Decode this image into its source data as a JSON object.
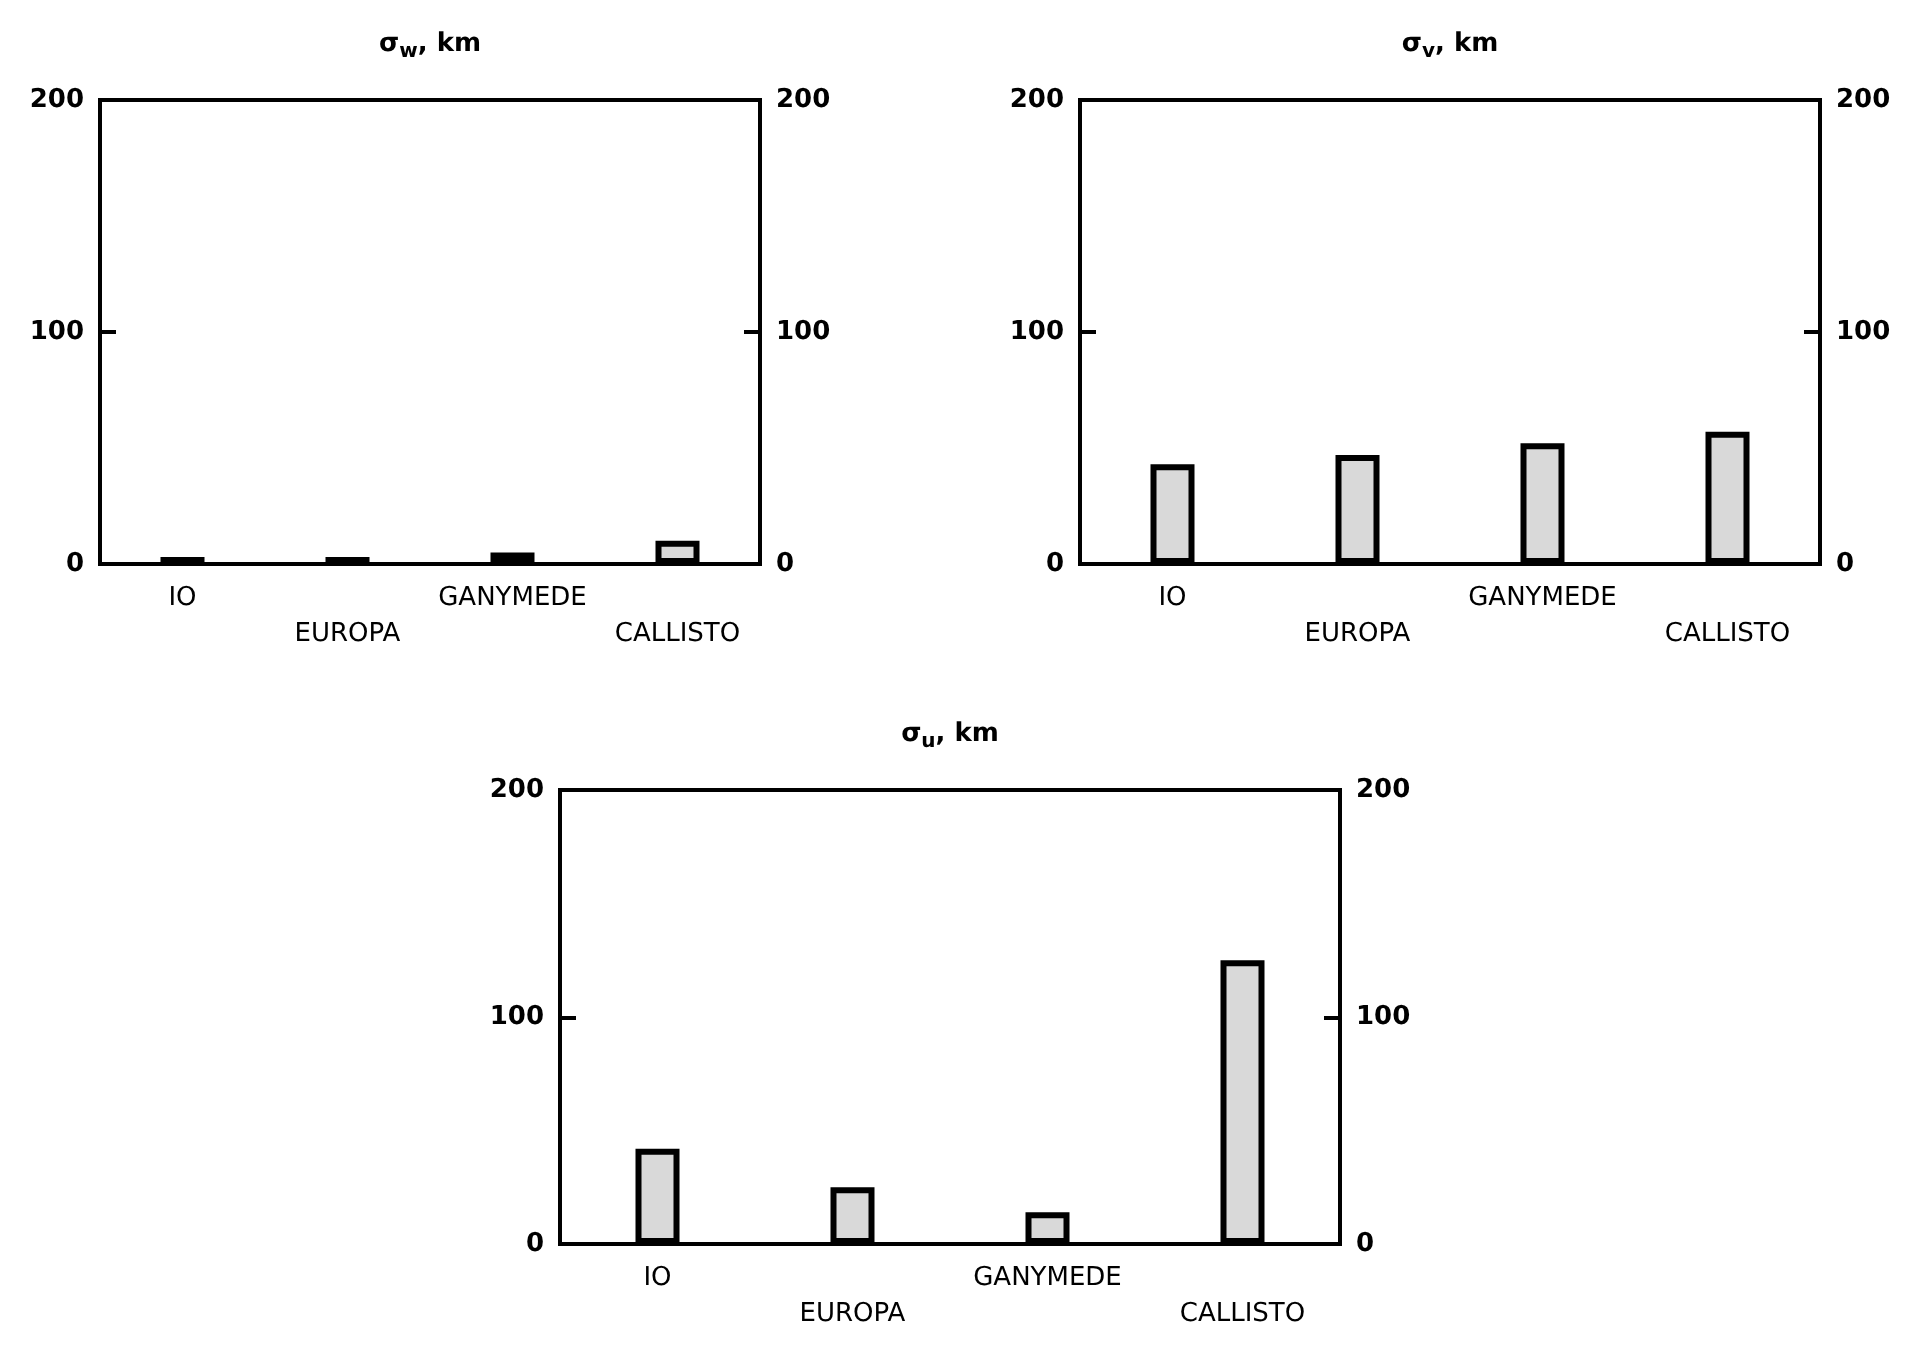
{
  "chart_data": [
    {
      "type": "bar",
      "title": "σ$_{w}$, km",
      "categories": [
        "IO",
        "EUROPA",
        "GANYMEDE",
        "CALLISTO"
      ],
      "values": [
        3,
        3,
        5,
        10
      ],
      "color": "#d9d9d9",
      "ylim": [
        0,
        200
      ],
      "yticks": [
        0,
        100,
        200
      ],
      "y2lim": [
        0,
        200
      ],
      "y2ticks": [
        0,
        100,
        200
      ]
    },
    {
      "type": "bar",
      "title": "σ$_{v}$, km",
      "categories": [
        "IO",
        "EUROPA",
        "GANYMEDE",
        "CALLISTO"
      ],
      "values": [
        43,
        47,
        52,
        57
      ],
      "color": "#d9d9d9",
      "ylim": [
        0,
        200
      ],
      "yticks": [
        0,
        100,
        200
      ],
      "y2lim": [
        0,
        200
      ],
      "y2ticks": [
        0,
        100,
        200
      ]
    },
    {
      "type": "bar",
      "title": "σ$_{u}$, km",
      "categories": [
        "IO",
        "EUROPA",
        "GANYMEDE",
        "CALLISTO"
      ],
      "values": [
        42,
        25,
        14,
        125
      ],
      "color": "#d9d9d9",
      "ylim": [
        0,
        200
      ],
      "yticks": [
        0,
        100,
        200
      ],
      "y2lim": [
        0,
        200
      ],
      "y2ticks": [
        0,
        100,
        200
      ]
    }
  ]
}
